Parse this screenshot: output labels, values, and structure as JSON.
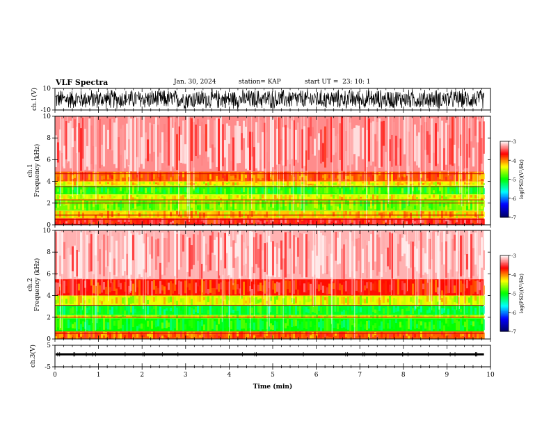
{
  "header": {
    "title": "VLF Spectra",
    "date": "Jan. 30, 2024",
    "station": "station= KAP",
    "start_ut": "start UT =  23: 10: 1"
  },
  "chart_data": [
    {
      "type": "line",
      "panel": "ch1-waveform",
      "ylabel": "ch.1(V)",
      "ylim": [
        -10,
        10
      ],
      "yticks": [
        "10",
        "-10"
      ],
      "xlim": [
        0,
        10
      ],
      "xticks": [
        "0",
        "1",
        "2",
        "3",
        "4",
        "5",
        "6",
        "7",
        "8",
        "9",
        "10"
      ],
      "color": "#000000",
      "description_values": {
        "min_v": -10,
        "max_v": 10,
        "data_end_min": 9.85
      }
    },
    {
      "type": "heatmap",
      "panel": "ch1-spectrogram",
      "ylabel": "ch.1\nFrequency (kHz)",
      "ylabel_line1": "ch.1",
      "ylabel_line2": "Frequency (kHz)",
      "ylim": [
        0,
        10
      ],
      "yticks": [
        "0",
        "2",
        "4",
        "6",
        "8",
        "10"
      ],
      "xlim": [
        0,
        10
      ],
      "data_end_min": 9.85,
      "colorbar": {
        "label": "log(PSD)(V²/Hz)",
        "range": [
          -7,
          -3
        ],
        "ticks": [
          "-3",
          "-4",
          "-5",
          "-6",
          "-7"
        ]
      },
      "bands": [
        {
          "f_low": 4.9,
          "f_high": 10.0,
          "level": -3.3
        },
        {
          "f_low": 4.0,
          "f_high": 4.9,
          "level": -3.9
        },
        {
          "f_low": 3.6,
          "f_high": 4.0,
          "level": -4.3
        },
        {
          "f_low": 2.8,
          "f_high": 3.6,
          "level": -4.9
        },
        {
          "f_low": 2.3,
          "f_high": 2.8,
          "level": -4.4
        },
        {
          "f_low": 1.3,
          "f_high": 2.3,
          "level": -4.7
        },
        {
          "f_low": 0.6,
          "f_high": 1.3,
          "level": -4.2
        },
        {
          "f_low": 0.0,
          "f_high": 0.6,
          "level": -3.6
        }
      ],
      "lines_khz": [
        0.5,
        0.9,
        2.0,
        2.3,
        3.5,
        4.7
      ]
    },
    {
      "type": "heatmap",
      "panel": "ch2-spectrogram",
      "ylabel": "ch.2\nFrequency (kHz)",
      "ylabel_line1": "ch.2",
      "ylabel_line2": "Frequency (kHz)",
      "ylim": [
        0,
        10
      ],
      "yticks": [
        "0",
        "2",
        "4",
        "6",
        "8",
        "10"
      ],
      "xlim": [
        0,
        10
      ],
      "data_end_min": 9.85,
      "colorbar": {
        "label": "log(PSD)(V²/Hz)",
        "range": [
          -7,
          -3
        ],
        "ticks": [
          "-3",
          "-4",
          "-5",
          "-6",
          "-7"
        ]
      },
      "bands": [
        {
          "f_low": 5.5,
          "f_high": 10.0,
          "level": -3.2
        },
        {
          "f_low": 4.0,
          "f_high": 5.5,
          "level": -3.7
        },
        {
          "f_low": 3.1,
          "f_high": 4.0,
          "level": -4.4
        },
        {
          "f_low": 2.2,
          "f_high": 3.1,
          "level": -5.1
        },
        {
          "f_low": 1.9,
          "f_high": 2.2,
          "level": -4.5
        },
        {
          "f_low": 0.7,
          "f_high": 1.9,
          "level": -5.0
        },
        {
          "f_low": 0.0,
          "f_high": 0.7,
          "level": -3.9
        }
      ],
      "lines_khz": [
        0.5,
        2.0,
        3.1
      ]
    },
    {
      "type": "line",
      "panel": "ch3-waveform",
      "ylabel": "ch.3(V)",
      "ylim": [
        -5,
        5
      ],
      "yticks": [
        "5",
        "-5"
      ],
      "xlim": [
        0,
        10
      ],
      "xticks": [
        "0",
        "1",
        "2",
        "3",
        "4",
        "5",
        "6",
        "7",
        "8",
        "9",
        "10"
      ],
      "xlabel": "Time (min)",
      "color": "#000000",
      "description_values": {
        "center_v": 0.8,
        "min_v": 0.3,
        "max_v": 1.3,
        "data_end_min": 9.85
      }
    }
  ],
  "colors": {
    "colormap": [
      "#000066",
      "#0000ff",
      "#00ffff",
      "#00ff00",
      "#ffff00",
      "#ff0000",
      "#ffffff"
    ],
    "axis": "#000000",
    "background": "#ffffff"
  }
}
